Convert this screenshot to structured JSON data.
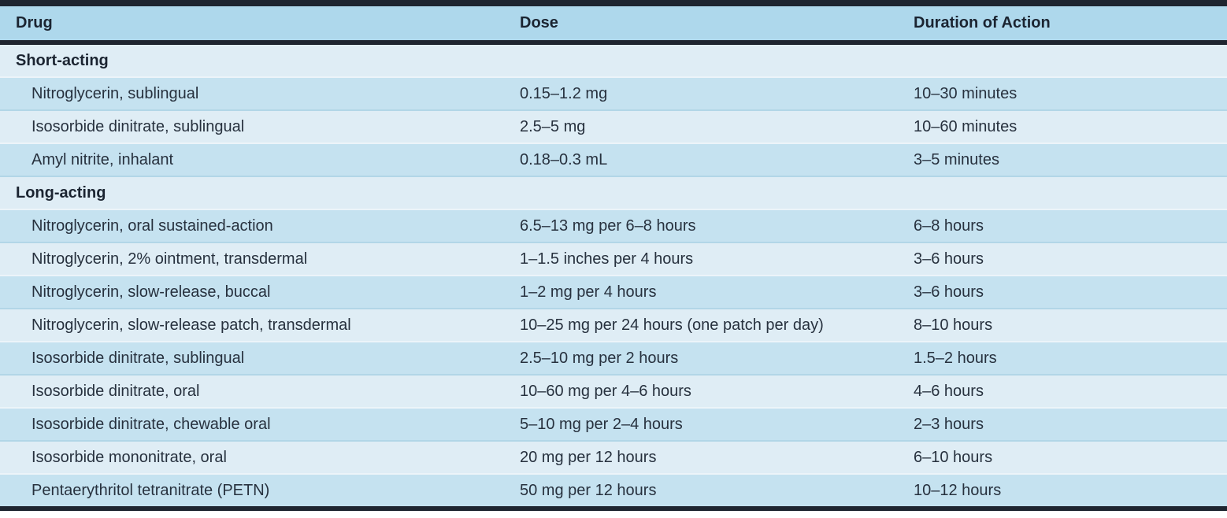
{
  "table": {
    "columns": [
      {
        "label": "Drug"
      },
      {
        "label": "Dose"
      },
      {
        "label": "Duration of Action"
      }
    ],
    "sections": [
      {
        "label": "Short-acting",
        "rows": [
          {
            "drug": "Nitroglycerin, sublingual",
            "dose": "0.15–1.2 mg",
            "duration": "10–30 minutes"
          },
          {
            "drug": "Isosorbide dinitrate, sublingual",
            "dose": "2.5–5 mg",
            "duration": "10–60 minutes"
          },
          {
            "drug": "Amyl nitrite, inhalant",
            "dose": "0.18–0.3 mL",
            "duration": "3–5 minutes"
          }
        ]
      },
      {
        "label": "Long-acting",
        "rows": [
          {
            "drug": "Nitroglycerin, oral sustained-action",
            "dose": "6.5–13 mg per 6–8 hours",
            "duration": "6–8 hours"
          },
          {
            "drug": "Nitroglycerin, 2% ointment, transdermal",
            "dose": "1–1.5 inches per 4 hours",
            "duration": "3–6 hours"
          },
          {
            "drug": "Nitroglycerin, slow-release, buccal",
            "dose": "1–2 mg per 4 hours",
            "duration": "3–6 hours"
          },
          {
            "drug": "Nitroglycerin, slow-release patch, transdermal",
            "dose": "10–25 mg per 24 hours (one patch per day)",
            "duration": "8–10 hours"
          },
          {
            "drug": "Isosorbide dinitrate, sublingual",
            "dose": "2.5–10 mg per 2 hours",
            "duration": "1.5–2 hours"
          },
          {
            "drug": "Isosorbide dinitrate, oral",
            "dose": "10–60 mg per 4–6 hours",
            "duration": "4–6 hours"
          },
          {
            "drug": "Isosorbide dinitrate, chewable oral",
            "dose": "5–10 mg per 2–4 hours",
            "duration": "2–3 hours"
          },
          {
            "drug": "Isosorbide mononitrate, oral",
            "dose": "20 mg per 12 hours",
            "duration": "6–10 hours"
          },
          {
            "drug": "Pentaerythritol tetranitrate (PETN)",
            "dose": "50 mg per 12 hours",
            "duration": "10–12 hours"
          }
        ]
      }
    ]
  },
  "colors": {
    "border_dark": "#1e2530",
    "header_bg": "#aed8ec",
    "row_light": "#dfedf5",
    "row_medium": "#c5e2f0",
    "divider_on_light": "#ecf4f9",
    "divider_on_medium": "#b2d6e7",
    "header_text": "#1b2431",
    "body_text": "#27313e"
  }
}
